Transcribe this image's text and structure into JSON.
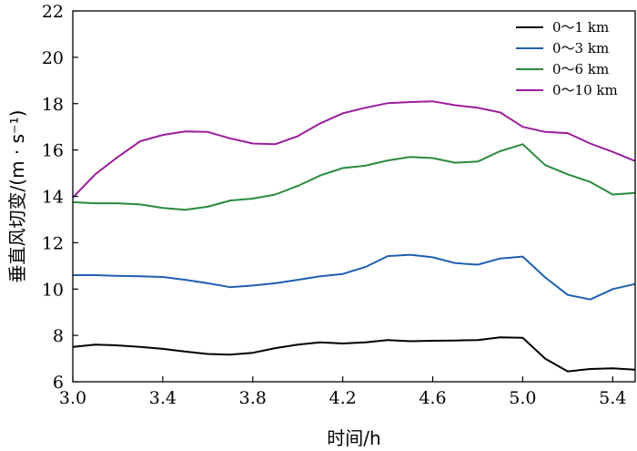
{
  "chart_data": {
    "type": "line",
    "title": "",
    "xlabel": "时间/h",
    "ylabel": "垂直风切变/(m · s⁻¹)",
    "xlim": [
      3.0,
      5.5
    ],
    "ylim": [
      6,
      22
    ],
    "xticks": [
      "3.0",
      "3.4",
      "3.8",
      "4.2",
      "4.6",
      "5.0",
      "5.4"
    ],
    "yticks": [
      "6",
      "8",
      "10",
      "12",
      "14",
      "16",
      "18",
      "20",
      "22"
    ],
    "grid": false,
    "legend_position": "top-right",
    "x": [
      3.0,
      3.1,
      3.2,
      3.3,
      3.4,
      3.5,
      3.6,
      3.7,
      3.8,
      3.9,
      4.0,
      4.1,
      4.2,
      4.3,
      4.4,
      4.5,
      4.6,
      4.7,
      4.8,
      4.9,
      5.0,
      5.1,
      5.2,
      5.3,
      5.4,
      5.5
    ],
    "series": [
      {
        "name": "0～1  km",
        "color": "#000000",
        "values": [
          7.5,
          7.6,
          7.57,
          7.5,
          7.42,
          7.3,
          7.2,
          7.17,
          7.25,
          7.45,
          7.6,
          7.7,
          7.65,
          7.7,
          7.8,
          7.75,
          7.77,
          7.78,
          7.8,
          7.92,
          7.9,
          7.0,
          6.45,
          6.55,
          6.58,
          6.52
        ]
      },
      {
        "name": "0～3  km",
        "color": "#1f5fb0",
        "values": [
          10.6,
          10.6,
          10.57,
          10.55,
          10.52,
          10.4,
          10.25,
          10.08,
          10.15,
          10.25,
          10.4,
          10.55,
          10.65,
          10.95,
          11.42,
          11.48,
          11.37,
          11.12,
          11.05,
          11.32,
          11.4,
          10.5,
          9.75,
          9.55,
          10.0,
          10.22
        ]
      },
      {
        "name": "0～6  km",
        "color": "#2a8a3e",
        "values": [
          13.75,
          13.7,
          13.7,
          13.65,
          13.5,
          13.42,
          13.55,
          13.82,
          13.9,
          14.08,
          14.45,
          14.9,
          15.22,
          15.32,
          15.55,
          15.7,
          15.65,
          15.45,
          15.5,
          15.95,
          16.25,
          15.35,
          14.95,
          14.62,
          14.08,
          14.15
        ]
      },
      {
        "name": "0～10  km",
        "color": "#9a1e9a",
        "values": [
          13.95,
          14.95,
          15.7,
          16.38,
          16.65,
          16.8,
          16.78,
          16.5,
          16.28,
          16.25,
          16.6,
          17.15,
          17.58,
          17.82,
          18.02,
          18.07,
          18.1,
          17.93,
          17.82,
          17.62,
          17.0,
          16.78,
          16.73,
          16.28,
          15.92,
          15.52
        ]
      }
    ]
  }
}
